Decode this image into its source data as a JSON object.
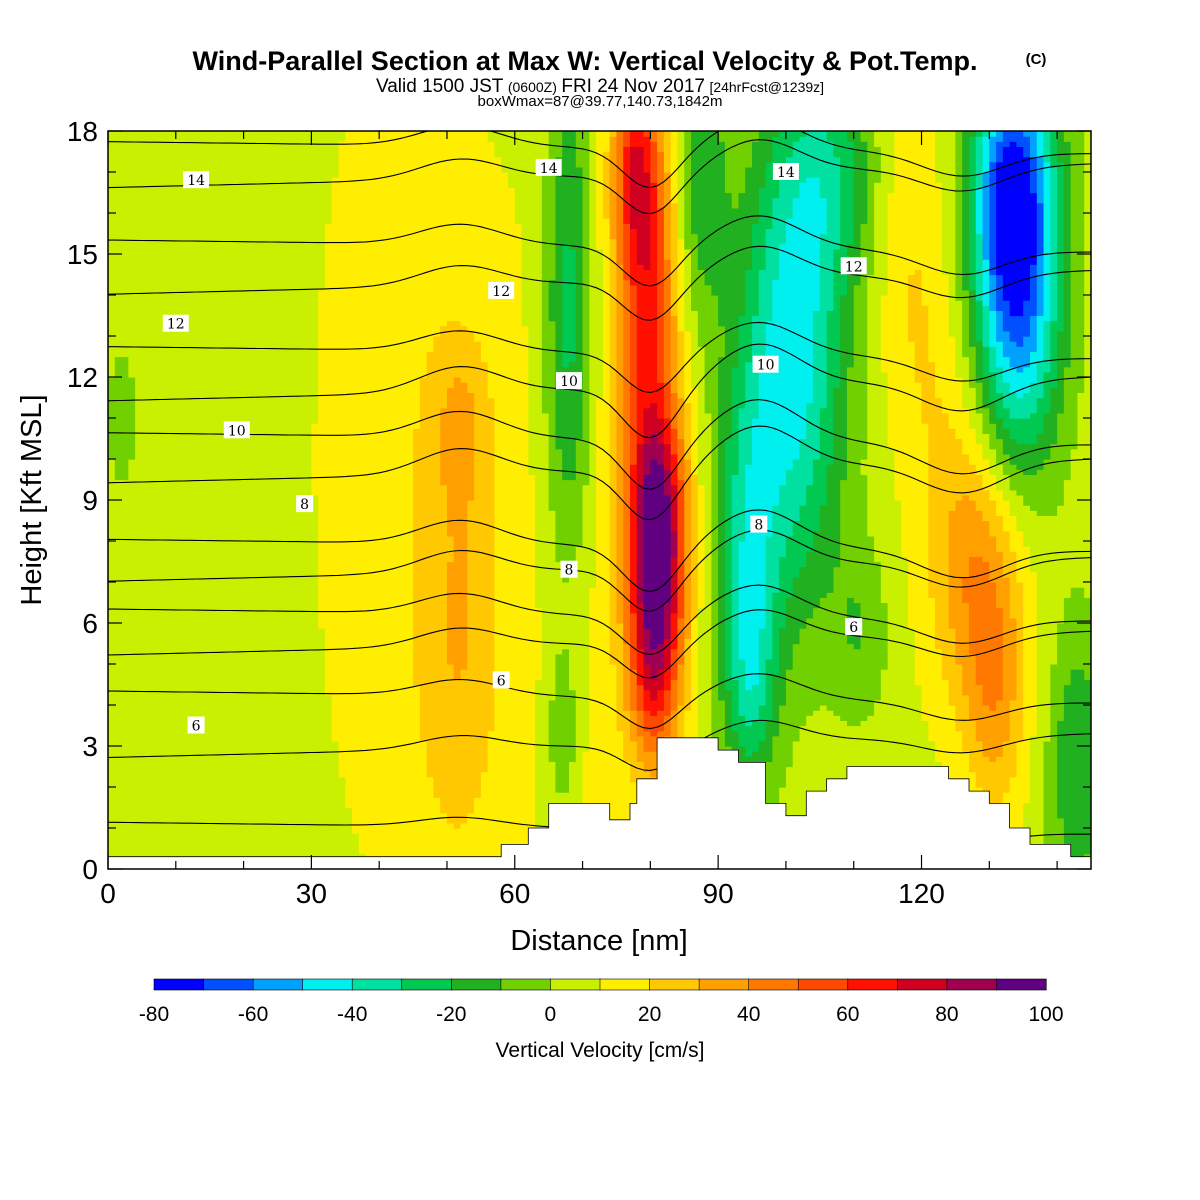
{
  "header": {
    "title": "Wind-Parallel Section at Max W: Vertical Velocity & Pot.Temp.",
    "title_mark": "(C)",
    "valid_prefix": "Valid 1500 JST",
    "valid_utc": "(0600Z)",
    "valid_date": "FRI 24 Nov 2017",
    "forecast": "[24hrFcst@1239z]",
    "box_info": "boxWmax=87@39.77,140.73,1842m"
  },
  "chart_data": {
    "type": "heatmap",
    "xlabel": "Distance [nm]",
    "ylabel": "Height [Kft MSL]",
    "xlim": [
      0,
      145
    ],
    "ylim": [
      0,
      18
    ],
    "x_ticks": [
      "0",
      "30",
      "60",
      "90",
      "120"
    ],
    "y_ticks": [
      "0",
      "3",
      "6",
      "9",
      "12",
      "15",
      "18"
    ],
    "colorbar": {
      "title": "Vertical Velocity [cm/s]",
      "tick_labels": [
        "-80",
        "-60",
        "-40",
        "-20",
        "0",
        "20",
        "40",
        "60",
        "80",
        "100"
      ],
      "levels": [
        -80,
        -70,
        -60,
        -50,
        -40,
        -30,
        -20,
        -10,
        0,
        10,
        20,
        30,
        40,
        50,
        60,
        70,
        80,
        90,
        100
      ],
      "colors": [
        "#0000ff",
        "#0050ff",
        "#00a0ff",
        "#00f0f0",
        "#00e0a0",
        "#00c850",
        "#20b020",
        "#70d000",
        "#c8f000",
        "#ffee00",
        "#ffc800",
        "#ffa000",
        "#ff7800",
        "#ff4800",
        "#ff1000",
        "#d00020",
        "#a00050",
        "#600080"
      ]
    },
    "contour_labels": [
      {
        "text": "14",
        "x": 13,
        "y": 16.8
      },
      {
        "text": "14",
        "x": 65,
        "y": 17.1
      },
      {
        "text": "14",
        "x": 100,
        "y": 17.0
      },
      {
        "text": "12",
        "x": 10,
        "y": 13.3
      },
      {
        "text": "12",
        "x": 58,
        "y": 14.1
      },
      {
        "text": "12",
        "x": 110,
        "y": 14.7
      },
      {
        "text": "10",
        "x": 19,
        "y": 10.7
      },
      {
        "text": "10",
        "x": 68,
        "y": 11.9
      },
      {
        "text": "10",
        "x": 97,
        "y": 12.3
      },
      {
        "text": "8",
        "x": 29,
        "y": 8.9
      },
      {
        "text": "8",
        "x": 68,
        "y": 7.3
      },
      {
        "text": "8",
        "x": 96,
        "y": 8.4
      },
      {
        "text": "6",
        "x": 13,
        "y": 3.5
      },
      {
        "text": "6",
        "x": 58,
        "y": 4.6
      },
      {
        "text": "6",
        "x": 110,
        "y": 5.9
      }
    ]
  }
}
